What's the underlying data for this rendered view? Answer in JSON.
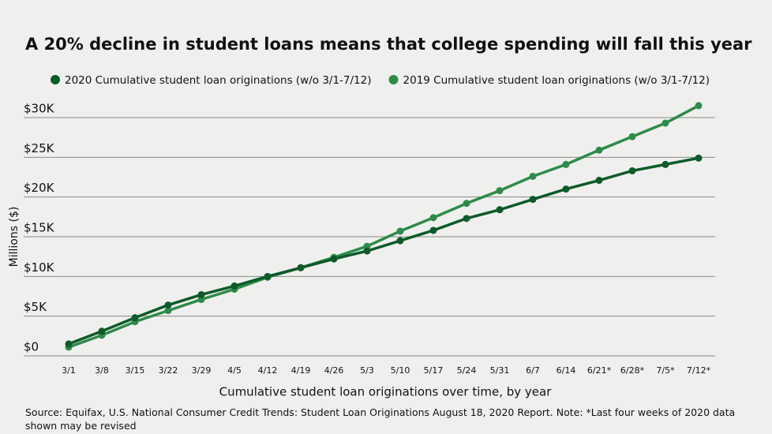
{
  "chart_data": {
    "type": "line",
    "title": "A 20% decline in student loans means that college spending will fall this year",
    "y_label": "Millions ($)",
    "x_label": "Cumulative student loan originations over time, by year",
    "source": "Source: Equifax, U.S. National Consumer Credit Trends: Student Loan Originations August 18, 2020 Report. Note: *Last four weeks of 2020 data shown may be revised",
    "categories": [
      "3/1",
      "3/8",
      "3/15",
      "3/22",
      "3/29",
      "4/5",
      "4/12",
      "4/19",
      "4/26",
      "5/3",
      "5/10",
      "5/17",
      "5/24",
      "5/31",
      "6/7",
      "6/14",
      "6/21*",
      "6/28*",
      "7/5*",
      "7/12*"
    ],
    "series": [
      {
        "name": "2020 Cumulative student loan originations (w/o 3/1-7/12)",
        "color": "#0f5a2a",
        "values": [
          1500,
          3100,
          4800,
          6400,
          7700,
          8800,
          10000,
          11100,
          12200,
          13200,
          14500,
          15800,
          17300,
          18400,
          19700,
          21000,
          22100,
          23300,
          24100,
          24900
        ]
      },
      {
        "name": "2019 Cumulative student loan originations (w/o 3/1-7/12)",
        "color": "#2f8a4b",
        "values": [
          1100,
          2600,
          4300,
          5700,
          7100,
          8400,
          9900,
          11100,
          12400,
          13800,
          15700,
          17400,
          19200,
          20800,
          22600,
          24100,
          25900,
          27600,
          29300,
          31500
        ]
      }
    ],
    "ylim": [
      0,
      30000
    ],
    "yticks": [
      {
        "value": 0,
        "label": "$0"
      },
      {
        "value": 5000,
        "label": "$5K"
      },
      {
        "value": 10000,
        "label": "$10K"
      },
      {
        "value": 15000,
        "label": "$15K"
      },
      {
        "value": 20000,
        "label": "$20K"
      },
      {
        "value": 25000,
        "label": "$25K"
      },
      {
        "value": 30000,
        "label": "$30K"
      }
    ],
    "grid": true
  }
}
